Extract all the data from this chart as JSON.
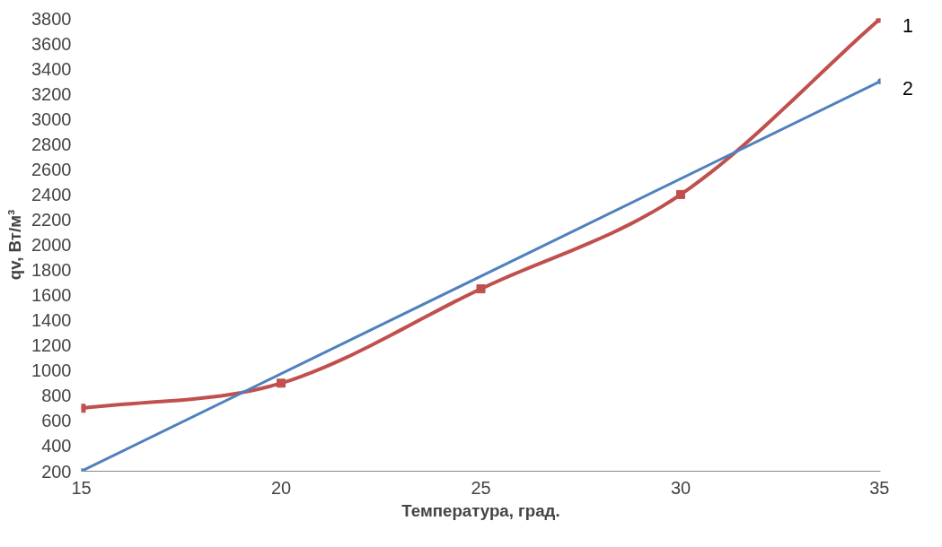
{
  "chart_data": {
    "type": "line",
    "xlabel": "Температура, град.",
    "ylabel": "qv, Вт/м³",
    "xlim": [
      15,
      35
    ],
    "xticks": [
      15,
      20,
      25,
      30,
      35
    ],
    "ylim": [
      200,
      3800
    ],
    "yticks": [
      200,
      400,
      600,
      800,
      1000,
      1200,
      1400,
      1600,
      1800,
      2000,
      2200,
      2400,
      2600,
      2800,
      3000,
      3200,
      3400,
      3600,
      3800
    ],
    "grid": false,
    "series": [
      {
        "name": "1",
        "color": "#c0504d",
        "marker": "square",
        "x": [
          15,
          20,
          25,
          30,
          35
        ],
        "values": [
          700,
          900,
          1650,
          2400,
          3800
        ]
      },
      {
        "name": "2",
        "color": "#4f81bd",
        "marker": "circle",
        "x": [
          15,
          35
        ],
        "values": [
          200,
          3300
        ]
      }
    ]
  }
}
